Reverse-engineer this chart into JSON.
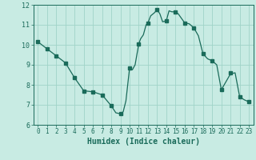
{
  "title": "",
  "xlabel": "Humidex (Indice chaleur)",
  "ylabel": "",
  "background_color": "#c8ebe3",
  "line_color": "#1a6b5a",
  "marker_color": "#1a6b5a",
  "grid_color": "#a0d4c8",
  "xlim": [
    -0.5,
    23.5
  ],
  "ylim": [
    6.0,
    12.0
  ],
  "yticks": [
    6,
    7,
    8,
    9,
    10,
    11,
    12
  ],
  "xticks": [
    0,
    1,
    2,
    3,
    4,
    5,
    6,
    7,
    8,
    9,
    10,
    11,
    12,
    13,
    14,
    15,
    16,
    17,
    18,
    19,
    20,
    21,
    22,
    23
  ],
  "x": [
    0,
    1,
    2,
    3,
    4,
    5,
    6,
    7,
    8,
    8.5,
    9,
    9.3,
    9.6,
    10,
    10.3,
    10.6,
    11,
    11.2,
    11.5,
    11.8,
    12.0,
    12.3,
    12.7,
    13.0,
    13.3,
    13.6,
    14.0,
    14.3,
    14.6,
    15.0,
    15.3,
    16.0,
    16.5,
    17.0,
    17.5,
    18.0,
    18.5,
    19.0,
    19.5,
    20.0,
    21.0,
    21.5,
    22.0,
    22.5,
    23.0
  ],
  "y": [
    10.15,
    9.8,
    9.45,
    9.1,
    8.35,
    7.7,
    7.65,
    7.5,
    6.95,
    6.6,
    6.55,
    6.65,
    7.2,
    8.85,
    8.75,
    9.0,
    10.05,
    10.3,
    10.5,
    11.0,
    11.1,
    11.45,
    11.6,
    11.75,
    11.55,
    11.15,
    11.2,
    11.7,
    11.65,
    11.65,
    11.55,
    11.1,
    11.05,
    10.85,
    10.45,
    9.55,
    9.3,
    9.2,
    9.0,
    7.75,
    8.55,
    8.6,
    7.4,
    7.25,
    7.15
  ],
  "marker_x": [
    0,
    1,
    2,
    3,
    4,
    5,
    6,
    7,
    8,
    9,
    10,
    11,
    12,
    13,
    14,
    15,
    16,
    17,
    18,
    19,
    20,
    21,
    22,
    23
  ],
  "marker_y": [
    10.15,
    9.8,
    9.45,
    9.1,
    8.35,
    7.7,
    7.65,
    7.5,
    6.95,
    6.55,
    8.85,
    10.05,
    11.1,
    11.75,
    11.2,
    11.65,
    11.1,
    10.85,
    9.55,
    9.2,
    7.75,
    8.6,
    7.4,
    7.15
  ],
  "label_fontsize": 6.0,
  "tick_fontsize": 5.5
}
